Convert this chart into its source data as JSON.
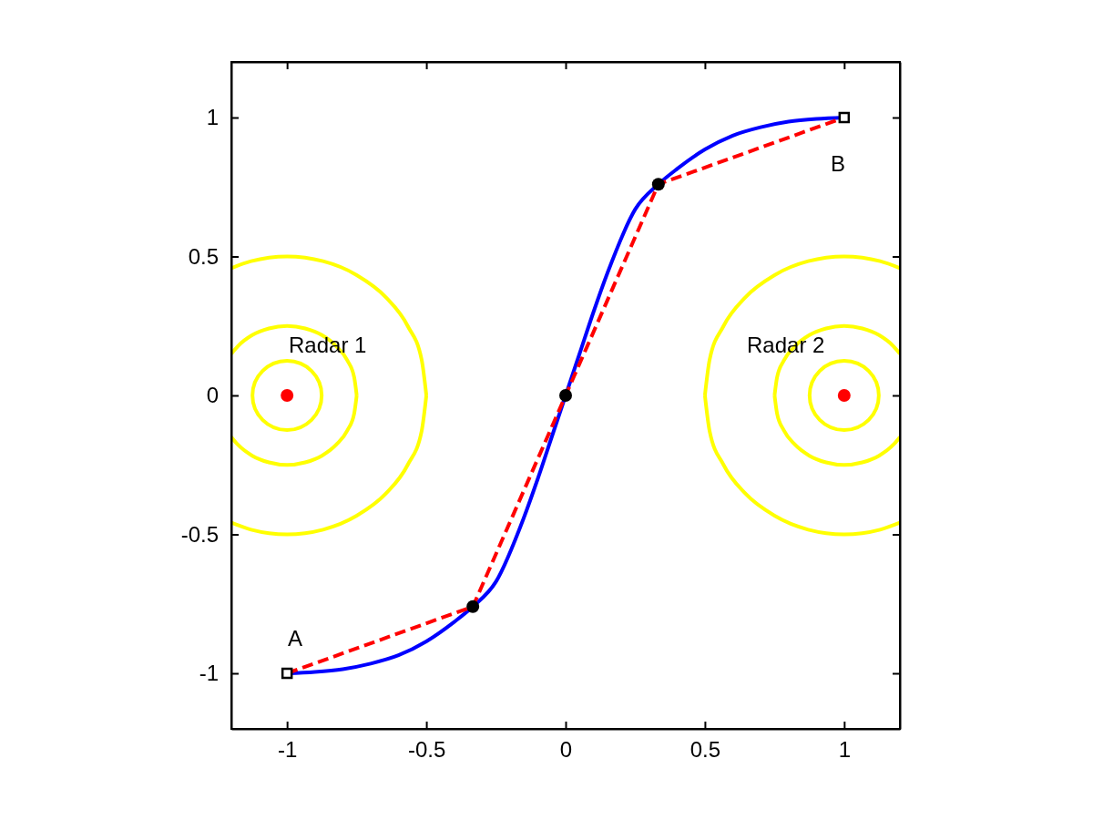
{
  "chart_data": {
    "type": "line",
    "xlim": [
      -1.2,
      1.2
    ],
    "ylim": [
      -1.2,
      1.2
    ],
    "xticks": [
      -1,
      -0.5,
      0,
      0.5,
      1
    ],
    "yticks": [
      -1,
      -0.5,
      0,
      0.5,
      1
    ],
    "grid": false,
    "series": [
      {
        "color": "#ffff00",
        "marker": "none",
        "line_style": "solid",
        "x": [
          -1.2,
          -1.129,
          -1,
          -0.871,
          -0.75,
          -0.646,
          -0.567,
          -0.517,
          -0.5
        ],
        "values": [
          0.458,
          0.483,
          0.5,
          0.483,
          0.433,
          0.354,
          0.25,
          0.129,
          0
        ]
      },
      {
        "color": "#ffff00",
        "marker": "none",
        "line_style": "solid",
        "x": [
          -1.2,
          -1.129,
          -1,
          -0.871,
          -0.75,
          -0.646,
          -0.567,
          -0.517,
          -0.5
        ],
        "values": [
          -0.458,
          -0.483,
          -0.5,
          -0.483,
          -0.433,
          -0.354,
          -0.25,
          -0.129,
          0
        ]
      },
      {
        "color": "#ffff00",
        "marker": "none",
        "line_style": "solid",
        "x": [
          -1.2,
          -1.177,
          -1.125,
          -1.065,
          -1,
          -0.935,
          -0.875,
          -0.823,
          -0.783,
          -0.759,
          -0.75
        ],
        "values": [
          0.15,
          0.177,
          0.217,
          0.241,
          0.25,
          0.241,
          0.217,
          0.177,
          0.125,
          0.065,
          0
        ]
      },
      {
        "color": "#ffff00",
        "marker": "none",
        "line_style": "solid",
        "x": [
          -1.2,
          -1.177,
          -1.125,
          -1.065,
          -1,
          -0.935,
          -0.875,
          -0.823,
          -0.783,
          -0.759,
          -0.75
        ],
        "values": [
          -0.15,
          -0.177,
          -0.217,
          -0.241,
          -0.25,
          -0.241,
          -0.217,
          -0.177,
          -0.125,
          -0.065,
          0
        ]
      },
      {
        "color": "#ffff00",
        "marker": "none",
        "line_style": "solid",
        "x": [
          0.5,
          0.517,
          0.567,
          0.646,
          0.75,
          0.871,
          1,
          1.129,
          1.2
        ],
        "values": [
          0,
          0.129,
          0.25,
          0.354,
          0.433,
          0.483,
          0.5,
          0.483,
          0.458
        ]
      },
      {
        "color": "#ffff00",
        "marker": "none",
        "line_style": "solid",
        "x": [
          0.5,
          0.517,
          0.567,
          0.646,
          0.75,
          0.871,
          1,
          1.129,
          1.2
        ],
        "values": [
          0,
          -0.129,
          -0.25,
          -0.354,
          -0.433,
          -0.483,
          -0.5,
          -0.483,
          -0.458
        ]
      },
      {
        "color": "#ffff00",
        "marker": "none",
        "line_style": "solid",
        "x": [
          0.75,
          0.759,
          0.783,
          0.823,
          0.875,
          0.935,
          1,
          1.065,
          1.125,
          1.177,
          1.2
        ],
        "values": [
          0,
          0.065,
          0.125,
          0.177,
          0.217,
          0.241,
          0.25,
          0.241,
          0.217,
          0.177,
          0.15
        ]
      },
      {
        "color": "#ffff00",
        "marker": "none",
        "line_style": "solid",
        "x": [
          0.75,
          0.759,
          0.783,
          0.823,
          0.875,
          0.935,
          1,
          1.065,
          1.125,
          1.177,
          1.2
        ],
        "values": [
          0,
          -0.065,
          -0.125,
          -0.177,
          -0.217,
          -0.241,
          -0.25,
          -0.241,
          -0.217,
          -0.177,
          -0.15
        ]
      },
      {
        "color": "#0000ff",
        "marker": "none",
        "line_style": "solid",
        "x": [
          -1,
          -0.9,
          -0.8,
          -0.7,
          -0.6,
          -0.5,
          -0.4,
          -0.333,
          -0.25,
          -0.15,
          -0.1,
          -0.05,
          0,
          0.05,
          0.1,
          0.15,
          0.25,
          0.333,
          0.4,
          0.5,
          0.6,
          0.7,
          0.8,
          0.9,
          1
        ],
        "values": [
          -1,
          -0.995,
          -0.985,
          -0.965,
          -0.935,
          -0.885,
          -0.815,
          -0.76,
          -0.67,
          -0.44,
          -0.3,
          -0.15,
          0,
          0.15,
          0.3,
          0.44,
          0.67,
          0.76,
          0.815,
          0.885,
          0.935,
          0.965,
          0.985,
          0.995,
          1
        ]
      },
      {
        "color": "#ff0000",
        "marker": "none",
        "line_style": "dashed",
        "x": [
          -1,
          -0.333,
          0,
          0.333,
          1
        ],
        "values": [
          -1,
          -0.76,
          0,
          0.76,
          1
        ]
      },
      {
        "type": "scatter",
        "color": "#000000",
        "marker": "circle",
        "x": [
          -0.333,
          0,
          0.333
        ],
        "values": [
          -0.76,
          0,
          0.76
        ]
      },
      {
        "type": "scatter",
        "color": "#000000",
        "marker": "square",
        "x": [
          -1,
          1
        ],
        "values": [
          -1,
          1
        ]
      },
      {
        "type": "scatter",
        "color": "#ff0000",
        "marker": "circle",
        "x": [
          -1,
          1
        ],
        "values": [
          0,
          0
        ]
      }
    ],
    "annotations": [
      "Radar 1",
      "Radar 2",
      "A",
      "B"
    ]
  }
}
